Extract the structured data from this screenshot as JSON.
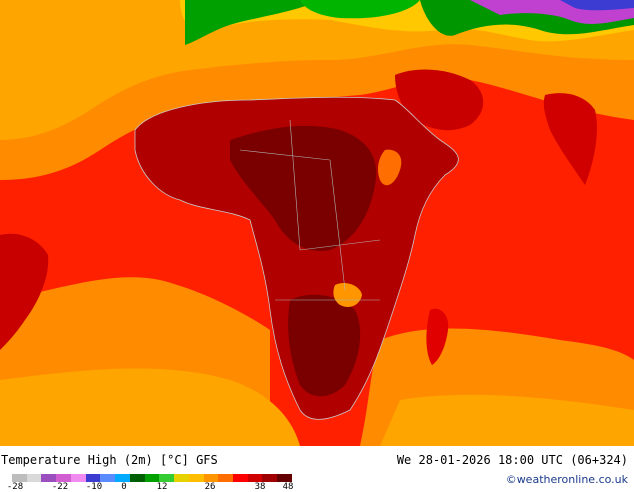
{
  "title": "Temperature High (2m) [°C] GFS",
  "valid_time": "We 28-01-2026 18:00 UTC (06+324)",
  "credit": "©weatheronline.co.uk",
  "legend": {
    "ticks": [
      "-28",
      "-22",
      "-10",
      "0",
      "12",
      "26",
      "38",
      "48"
    ],
    "colors": [
      "#bdbdbd",
      "#d9d9d9",
      "#9b4fbf",
      "#d25fd2",
      "#f08cf0",
      "#3c3cd2",
      "#5a8cff",
      "#00aaff",
      "#005f00",
      "#00a000",
      "#33cc33",
      "#e6d200",
      "#ffbe00",
      "#ff9600",
      "#ff6e00",
      "#ff0000",
      "#d00000",
      "#a00000",
      "#640000"
    ]
  },
  "colors": {
    "ocean_orange": "#ff8c00",
    "ocean_red": "#ff1a00",
    "land_hot": "#b00000",
    "land_very_hot": "#7a0000",
    "land_yellow": "#ffb400",
    "cold_green": "#009600",
    "cold_purple": "#c040d0"
  }
}
